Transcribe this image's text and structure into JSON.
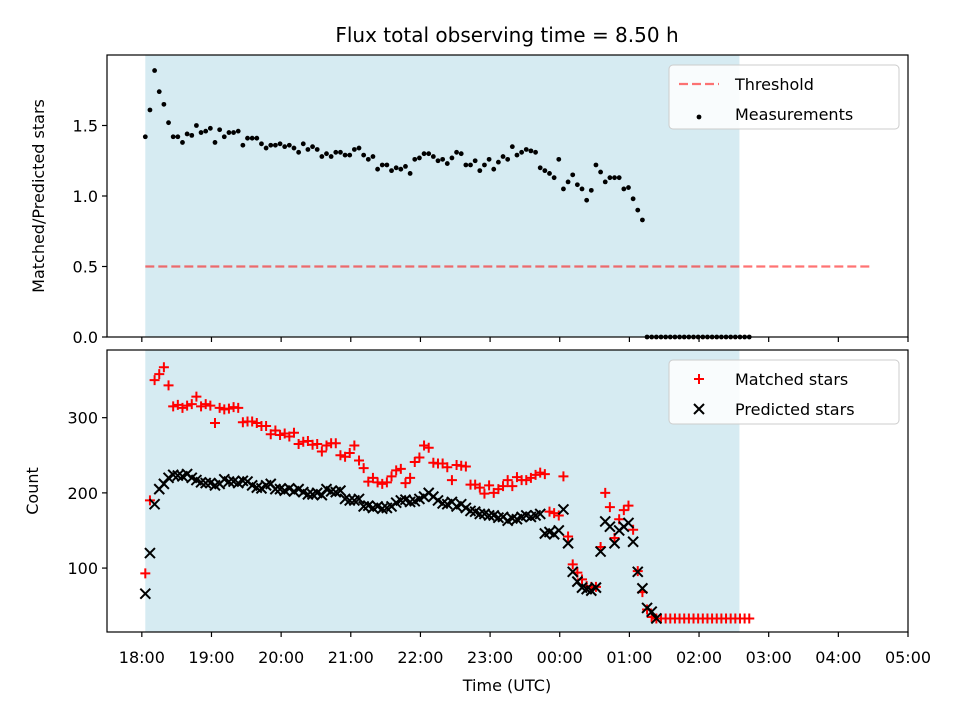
{
  "figure": {
    "title": "Flux total observing time = 8.50 h",
    "xlabel": "Time (UTC)"
  },
  "colors": {
    "shade": "#add8e6",
    "threshold": "#ff0000",
    "measurement": "#000000",
    "matched": "#ff0000",
    "predicted": "#000000"
  },
  "chart_data": [
    {
      "type": "scatter",
      "panel": "top",
      "ylabel": "Matched/Predicted stars",
      "xlim": [
        -0.5,
        11.0
      ],
      "ylim": [
        0.0,
        2.0
      ],
      "yticks": [
        0.0,
        0.5,
        1.0,
        1.5
      ],
      "ytick_labels": [
        "0.0",
        "0.5",
        "1.0",
        "1.5"
      ],
      "xticks": [
        0,
        1,
        2,
        3,
        4,
        5,
        6,
        7,
        8,
        9,
        10,
        11
      ],
      "xtick_labels": [
        "18:00",
        "19:00",
        "20:00",
        "21:00",
        "22:00",
        "23:00",
        "00:00",
        "01:00",
        "02:00",
        "03:00",
        "04:00",
        "05:00"
      ],
      "x_unit": "hours after 18:00 UTC",
      "shaded_span": [
        0.05,
        8.58
      ],
      "grid": false,
      "legend": "top-right",
      "threshold": {
        "name": "Threshold",
        "y": 0.5,
        "x_range": [
          0.05,
          10.47
        ],
        "style": "dashed"
      },
      "series": [
        {
          "name": "Measurements",
          "marker": "dot",
          "start": 0.05,
          "step": 0.0667,
          "values": [
            1.42,
            1.61,
            1.89,
            1.74,
            1.65,
            1.52,
            1.42,
            1.42,
            1.38,
            1.44,
            1.43,
            1.5,
            1.45,
            1.46,
            1.48,
            1.38,
            1.47,
            1.42,
            1.45,
            1.45,
            1.46,
            1.36,
            1.41,
            1.41,
            1.41,
            1.37,
            1.34,
            1.36,
            1.36,
            1.37,
            1.35,
            1.36,
            1.34,
            1.31,
            1.37,
            1.33,
            1.35,
            1.33,
            1.28,
            1.3,
            1.28,
            1.31,
            1.31,
            1.29,
            1.29,
            1.33,
            1.34,
            1.29,
            1.26,
            1.28,
            1.19,
            1.22,
            1.22,
            1.18,
            1.2,
            1.19,
            1.21,
            1.16,
            1.26,
            1.27,
            1.3,
            1.3,
            1.28,
            1.25,
            1.26,
            1.23,
            1.27,
            1.31,
            1.3,
            1.22,
            1.22,
            1.25,
            1.18,
            1.22,
            1.26,
            1.19,
            1.24,
            1.28,
            1.26,
            1.35,
            1.29,
            1.31,
            1.33,
            1.32,
            1.31,
            1.2,
            1.18,
            1.16,
            1.13,
            1.26,
            1.05,
            1.1,
            1.15,
            1.08,
            1.05,
            0.97,
            1.04,
            1.22,
            1.17,
            1.1,
            1.13,
            1.13,
            1.13,
            1.05,
            1.06,
            0.98,
            0.9,
            0.83,
            0.0,
            0.0,
            0.0,
            0.0,
            0.0,
            0.0,
            0.0,
            0.0,
            0.0,
            0.0,
            0.0,
            0.0,
            0.0,
            0.0,
            0.0,
            0.0,
            0.0,
            0.0,
            0.0,
            0.0,
            0.0,
            0.0,
            0.0
          ]
        }
      ]
    },
    {
      "type": "scatter",
      "panel": "bottom",
      "ylabel": "Count",
      "xlim": [
        -0.5,
        11.0
      ],
      "ylim": [
        15,
        390
      ],
      "yticks": [
        100,
        200,
        300
      ],
      "ytick_labels": [
        "100",
        "200",
        "300"
      ],
      "xticks": [
        0,
        1,
        2,
        3,
        4,
        5,
        6,
        7,
        8,
        9,
        10,
        11
      ],
      "xtick_labels": [
        "18:00",
        "19:00",
        "20:00",
        "21:00",
        "22:00",
        "23:00",
        "00:00",
        "01:00",
        "02:00",
        "03:00",
        "04:00",
        "05:00"
      ],
      "x_unit": "hours after 18:00 UTC",
      "shaded_span": [
        0.05,
        8.58
      ],
      "grid": false,
      "legend": "top-right",
      "series": [
        {
          "name": "Matched stars",
          "marker": "plus",
          "start": 0.05,
          "step": 0.0667,
          "values": [
            93,
            190,
            350,
            358,
            367,
            343,
            315,
            317,
            313,
            316,
            318,
            328,
            315,
            318,
            316,
            293,
            313,
            311,
            312,
            314,
            313,
            294,
            295,
            295,
            293,
            289,
            289,
            278,
            283,
            277,
            279,
            275,
            280,
            265,
            268,
            269,
            264,
            265,
            255,
            263,
            266,
            266,
            250,
            248,
            253,
            263,
            243,
            233,
            215,
            220,
            214,
            212,
            214,
            222,
            230,
            232,
            213,
            220,
            241,
            247,
            263,
            260,
            240,
            239,
            239,
            234,
            217,
            237,
            236,
            235,
            211,
            211,
            207,
            199,
            210,
            200,
            205,
            209,
            217,
            209,
            221,
            217,
            217,
            220,
            224,
            227,
            225,
            175,
            173,
            170,
            222,
            142,
            105,
            94,
            85,
            76,
            75,
            75,
            128,
            200,
            181,
            140,
            165,
            177,
            183,
            151,
            96,
            68,
            45,
            35,
            33,
            33,
            33,
            33,
            33,
            33,
            33,
            33,
            33,
            33,
            33,
            33,
            33,
            33,
            33,
            33,
            33,
            33,
            33,
            33,
            33
          ]
        },
        {
          "name": "Predicted stars",
          "marker": "x",
          "start": 0.05,
          "step": 0.0667,
          "values": [
            66,
            120,
            185,
            205,
            212,
            220,
            224,
            223,
            222,
            225,
            220,
            217,
            214,
            213,
            213,
            210,
            212,
            218,
            215,
            215,
            213,
            216,
            215,
            210,
            207,
            206,
            210,
            212,
            205,
            205,
            203,
            206,
            202,
            205,
            201,
            198,
            198,
            200,
            197,
            205,
            202,
            201,
            203,
            192,
            190,
            190,
            192,
            182,
            183,
            180,
            182,
            179,
            180,
            182,
            187,
            190,
            191,
            188,
            189,
            192,
            195,
            200,
            195,
            190,
            186,
            185,
            188,
            182,
            185,
            180,
            176,
            175,
            172,
            172,
            170,
            170,
            167,
            168,
            163,
            166,
            165,
            168,
            170,
            168,
            170,
            172,
            146,
            148,
            145,
            150,
            178,
            133,
            95,
            82,
            74,
            72,
            70,
            74,
            122,
            162,
            155,
            133,
            150,
            155,
            160,
            135,
            95,
            73,
            47,
            42,
            33
          ]
        }
      ]
    }
  ]
}
